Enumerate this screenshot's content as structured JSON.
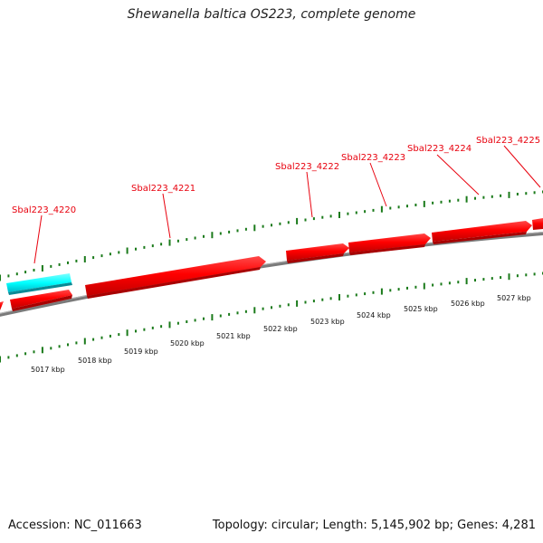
{
  "title": "Shewanella baltica OS223, complete genome",
  "genes": [
    {
      "label": "Sbal223_4220"
    },
    {
      "label": "Sbal223_4221"
    },
    {
      "label": "Sbal223_4222"
    },
    {
      "label": "Sbal223_4223"
    },
    {
      "label": "Sbal223_4224"
    },
    {
      "label": "Sbal223_4225"
    }
  ],
  "scale_labels": [
    "5017 kbp",
    "5018 kbp",
    "5019 kbp",
    "5020 kbp",
    "5021 kbp",
    "5022 kbp",
    "5023 kbp",
    "5024 kbp",
    "5025 kbp",
    "5026 kbp",
    "5027 kbp"
  ],
  "footer": {
    "accession": "Accession: NC_011663",
    "summary": "Topology: circular; Length: 5,145,902 bp; Genes: 4,281"
  },
  "colors": {
    "cds": "#ff0000",
    "cds_shadow": "#b00000",
    "other_feature": "#00ffff",
    "ticks": "#1a7a1a",
    "backbone": "#808080",
    "label": "#e8000d"
  }
}
